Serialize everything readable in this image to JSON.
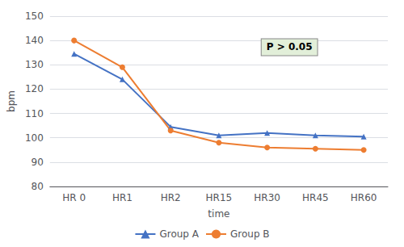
{
  "chart_data": {
    "type": "line",
    "xlabel": "time",
    "ylabel": "bpm",
    "categories": [
      "HR 0",
      "HR1",
      "HR2",
      "HR15",
      "HR30",
      "HR45",
      "HR60"
    ],
    "series": [
      {
        "name": "Group A",
        "color": "#4472C4",
        "marker": "triangle",
        "values": [
          134.5,
          124,
          104.5,
          101,
          102,
          101,
          100.5
        ]
      },
      {
        "name": "Group B",
        "color": "#ED7D31",
        "marker": "circle",
        "values": [
          140,
          129,
          103,
          98,
          96,
          95.5,
          95
        ]
      }
    ],
    "ylim": [
      80,
      150
    ],
    "yticks": [
      80,
      90,
      100,
      110,
      120,
      130,
      140,
      150
    ],
    "grid": true,
    "legend": "bottom",
    "annotations": [
      "P > 0.05"
    ]
  }
}
